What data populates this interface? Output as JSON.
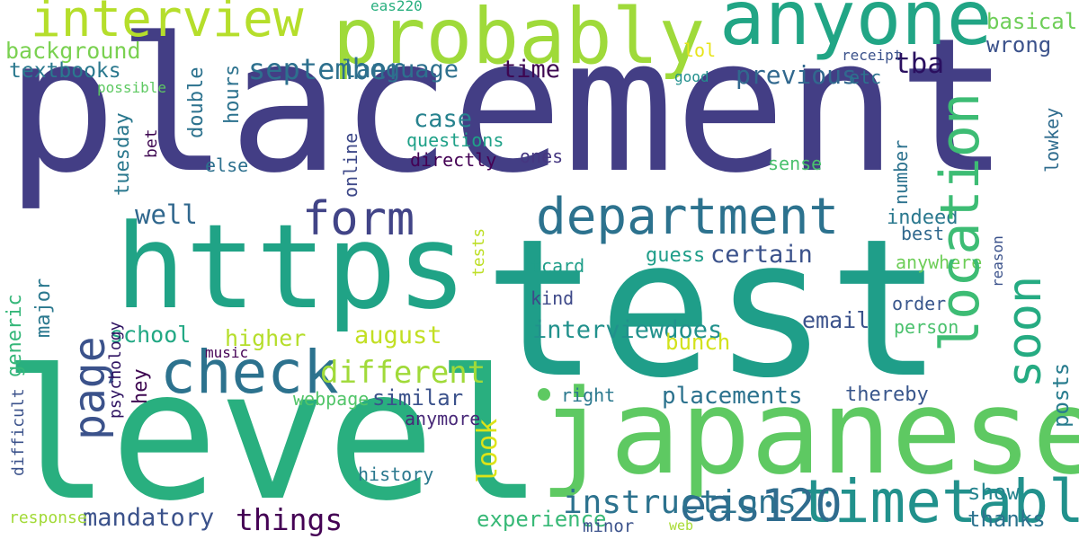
{
  "canvas": {
    "background": "#ffffff"
  },
  "words": [
    {
      "text": "placement",
      "color": "#433e85"
    },
    {
      "text": "test",
      "color": "#1f9e89"
    },
    {
      "text": "level",
      "color": "#29af7f"
    },
    {
      "text": "japanese",
      "color": "#5ec962"
    },
    {
      "text": "https",
      "color": "#20a386"
    },
    {
      "text": "probably",
      "color": "#9fda3a"
    },
    {
      "text": "anyone",
      "color": "#21a585"
    },
    {
      "text": "interview",
      "color": "#b5de2b"
    },
    {
      "text": "department",
      "color": "#2c728e"
    },
    {
      "text": "timetable",
      "color": "#21918c"
    },
    {
      "text": "check",
      "color": "#2c728e"
    },
    {
      "text": "form",
      "color": "#414487"
    },
    {
      "text": "eas120",
      "color": "#2f6c8e"
    },
    {
      "text": "things",
      "color": "#440154"
    },
    {
      "text": "different",
      "color": "#a0da39"
    },
    {
      "text": "well",
      "color": "#31688e"
    },
    {
      "text": "instructions",
      "color": "#2c728e"
    },
    {
      "text": "mandatory",
      "color": "#3b528b"
    },
    {
      "text": "august",
      "color": "#c2df23"
    },
    {
      "text": "september",
      "color": "#2d708e"
    },
    {
      "text": "tba",
      "color": "#2a0f5f"
    },
    {
      "text": "previous",
      "color": "#31688e"
    },
    {
      "text": "language",
      "color": "#2d708e"
    },
    {
      "text": "time",
      "color": "#3e0751"
    },
    {
      "text": "case",
      "color": "#26828e"
    },
    {
      "text": "certain",
      "color": "#3b528b"
    },
    {
      "text": "placements",
      "color": "#2c728e"
    },
    {
      "text": "basically",
      "color": "#6ece58"
    },
    {
      "text": "wrong",
      "color": "#3b528b"
    },
    {
      "text": "background",
      "color": "#7ad151"
    },
    {
      "text": "textbooks",
      "color": "#2a788e"
    },
    {
      "text": "interviewdoes",
      "color": "#21918c"
    },
    {
      "text": "school",
      "color": "#22a884"
    },
    {
      "text": "higher",
      "color": "#b5de2b"
    },
    {
      "text": "similar",
      "color": "#3b528b"
    },
    {
      "text": "experience",
      "color": "#38b977"
    },
    {
      "text": "show",
      "color": "#25848e"
    },
    {
      "text": "thanks",
      "color": "#2c728e"
    },
    {
      "text": "bunch",
      "color": "#d2e21b"
    },
    {
      "text": "email",
      "color": "#3b528b"
    },
    {
      "text": "indeed",
      "color": "#2a788e"
    },
    {
      "text": "guess",
      "color": "#1f9e89"
    },
    {
      "text": "thereby",
      "color": "#39568c"
    },
    {
      "text": "questions",
      "color": "#1fa188"
    },
    {
      "text": "directly",
      "color": "#440154"
    },
    {
      "text": "ones",
      "color": "#453781"
    },
    {
      "text": "sense",
      "color": "#4ac16d"
    },
    {
      "text": "lol",
      "color": "#e7e419"
    },
    {
      "text": "etc",
      "color": "#2c728e"
    },
    {
      "text": "else",
      "color": "#2d708e"
    },
    {
      "text": "tcard",
      "color": "#1f9e89"
    },
    {
      "text": "kind",
      "color": "#3e4989"
    },
    {
      "text": "best",
      "color": "#31688e"
    },
    {
      "text": "anywhere",
      "color": "#6ece58"
    },
    {
      "text": "order",
      "color": "#39568c"
    },
    {
      "text": "person",
      "color": "#4ac16d"
    },
    {
      "text": "anymore",
      "color": "#482878"
    },
    {
      "text": "webpage",
      "color": "#52c569"
    },
    {
      "text": "history",
      "color": "#2a788e"
    },
    {
      "text": "right",
      "color": "#2a788e"
    },
    {
      "text": "response",
      "color": "#a2da37"
    },
    {
      "text": "minor",
      "color": "#3b528b"
    },
    {
      "text": "web",
      "color": "#a8db34"
    },
    {
      "text": "music",
      "color": "#440154"
    },
    {
      "text": "eas220",
      "color": "#29af7f"
    },
    {
      "text": "receipt",
      "color": "#3b528b"
    },
    {
      "text": "good",
      "color": "#218f8d"
    },
    {
      "text": "possible",
      "color": "#5ec962"
    },
    {
      "text": "location",
      "color": "#3dbc74"
    },
    {
      "text": "soon",
      "color": "#25ab82"
    },
    {
      "text": "page",
      "color": "#3b528b"
    },
    {
      "text": "look",
      "color": "#dde318"
    },
    {
      "text": "posts",
      "color": "#287c8e"
    },
    {
      "text": "major",
      "color": "#2a788e"
    },
    {
      "text": "generic",
      "color": "#35b779"
    },
    {
      "text": "hey",
      "color": "#3e0751"
    },
    {
      "text": "hours",
      "color": "#2c728e"
    },
    {
      "text": "double",
      "color": "#2c728e"
    },
    {
      "text": "tuesday",
      "color": "#2a788e"
    },
    {
      "text": "online",
      "color": "#3e4989"
    },
    {
      "text": "number",
      "color": "#2c728e"
    },
    {
      "text": "lowkey",
      "color": "#2f6c8e"
    },
    {
      "text": "bet",
      "color": "#3e0751"
    },
    {
      "text": "tests",
      "color": "#bddf26"
    },
    {
      "text": "reason",
      "color": "#3b528b"
    },
    {
      "text": "psychology",
      "color": "#2d1160"
    },
    {
      "text": "difficult",
      "color": "#3b528b"
    }
  ]
}
